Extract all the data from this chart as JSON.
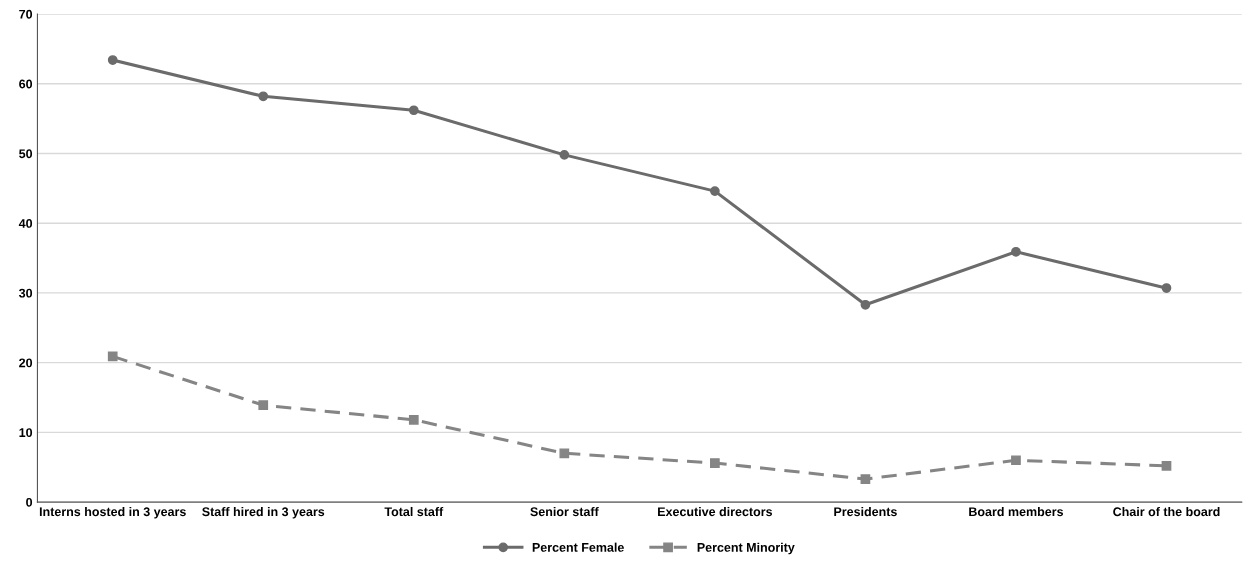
{
  "chart_data": {
    "type": "line",
    "categories": [
      "Interns hosted in 3 years",
      "Staff hired in 3 years",
      "Total staff",
      "Senior staff",
      "Executive directors",
      "Presidents",
      "Board members",
      "Chair of the board"
    ],
    "series": [
      {
        "name": "Percent Female",
        "color": "#6b6b6b",
        "marker": "circle",
        "line_style": "solid",
        "values": [
          63.4,
          58.2,
          56.2,
          49.8,
          44.6,
          28.3,
          35.9,
          30.7
        ]
      },
      {
        "name": "Percent Minority",
        "color": "#858585",
        "marker": "square",
        "line_style": "dashed",
        "values": [
          20.9,
          13.9,
          11.8,
          7.0,
          5.6,
          3.3,
          6.0,
          5.2
        ]
      }
    ],
    "ylim": [
      0,
      70
    ],
    "yticks": [
      0,
      10,
      20,
      30,
      40,
      50,
      60,
      70
    ],
    "grid": "y",
    "legend": "bottom"
  }
}
